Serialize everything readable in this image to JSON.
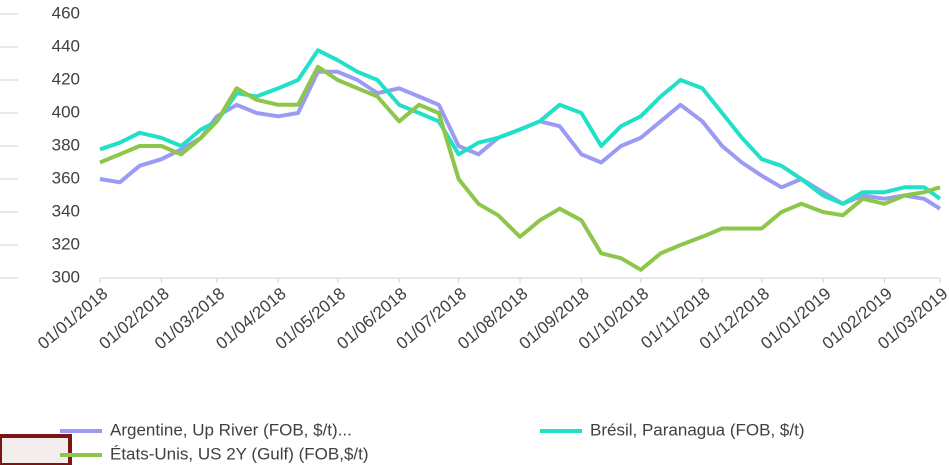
{
  "chart_data": {
    "type": "line",
    "x": [
      "01/01/2018",
      "11/01/2018",
      "21/01/2018",
      "01/02/2018",
      "11/02/2018",
      "21/02/2018",
      "01/03/2018",
      "11/03/2018",
      "21/03/2018",
      "01/04/2018",
      "11/04/2018",
      "21/04/2018",
      "01/05/2018",
      "11/05/2018",
      "21/05/2018",
      "01/06/2018",
      "11/06/2018",
      "21/06/2018",
      "01/07/2018",
      "11/07/2018",
      "21/07/2018",
      "01/08/2018",
      "11/08/2018",
      "21/08/2018",
      "01/09/2018",
      "11/09/2018",
      "21/09/2018",
      "01/10/2018",
      "11/10/2018",
      "21/10/2018",
      "01/11/2018",
      "11/11/2018",
      "21/11/2018",
      "01/12/2018",
      "11/12/2018",
      "21/12/2018",
      "01/01/2019",
      "11/01/2019",
      "21/01/2019",
      "01/02/2019",
      "11/02/2019",
      "21/02/2019",
      "01/03/2019"
    ],
    "series": [
      {
        "name": "Argentine, Up River (FOB, $/t)...",
        "color": "#9b9bf5",
        "values": [
          360,
          358,
          368,
          372,
          378,
          385,
          398,
          405,
          400,
          398,
          400,
          425,
          425,
          420,
          412,
          415,
          410,
          405,
          380,
          375,
          385,
          390,
          395,
          392,
          375,
          370,
          380,
          385,
          395,
          405,
          395,
          380,
          370,
          362,
          355,
          360,
          352,
          345,
          350,
          348,
          350,
          348,
          342
        ]
      },
      {
        "name": "Brésil, Paranagua (FOB, $/t)",
        "color": "#22e0c8",
        "values": [
          378,
          382,
          388,
          385,
          380,
          390,
          395,
          412,
          410,
          415,
          420,
          438,
          432,
          425,
          420,
          405,
          400,
          395,
          375,
          382,
          385,
          390,
          395,
          405,
          400,
          380,
          392,
          398,
          410,
          420,
          415,
          400,
          385,
          372,
          368,
          360,
          350,
          345,
          352,
          352,
          355,
          355,
          348
        ]
      },
      {
        "name": "États-Unis, US 2Y (Gulf) (FOB,$/t)",
        "color": "#8cc64a",
        "values": [
          370,
          375,
          380,
          380,
          375,
          385,
          395,
          415,
          408,
          405,
          405,
          428,
          420,
          415,
          410,
          395,
          405,
          400,
          360,
          345,
          338,
          325,
          335,
          342,
          335,
          315,
          312,
          305,
          315,
          320,
          325,
          330,
          330,
          330,
          340,
          345,
          340,
          338,
          348,
          345,
          350,
          352,
          355
        ]
      }
    ],
    "xticks": [
      "01/01/2018",
      "01/02/2018",
      "01/03/2018",
      "01/04/2018",
      "01/05/2018",
      "01/06/2018",
      "01/07/2018",
      "01/08/2018",
      "01/09/2018",
      "01/10/2018",
      "01/11/2018",
      "01/12/2018",
      "01/01/2019",
      "01/02/2019",
      "01/03/2019"
    ],
    "xlim": [
      "01/01/2018",
      "01/03/2019"
    ],
    "ylim": [
      300,
      460
    ],
    "yticks": [
      300,
      320,
      340,
      360,
      380,
      400,
      420,
      440,
      460
    ]
  }
}
